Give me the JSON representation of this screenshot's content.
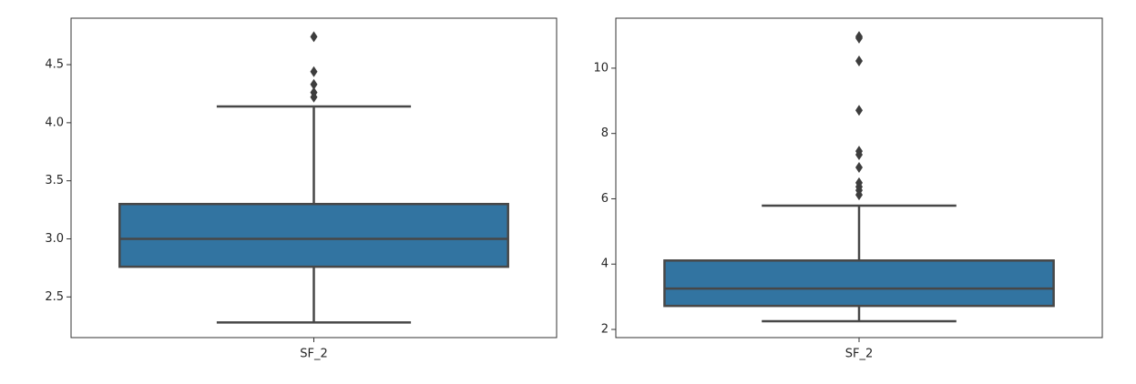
{
  "chart_data": [
    {
      "type": "box",
      "categories": [
        "SF_2"
      ],
      "color": "#3274a1",
      "boxes": [
        {
          "whislo": 2.28,
          "q1": 2.76,
          "median": 3.0,
          "q3": 3.3,
          "whishi": 4.14,
          "fliers": [
            4.74,
            4.44,
            4.33,
            4.26,
            4.22
          ]
        }
      ],
      "ylim": [
        2.15,
        4.9
      ],
      "yticks": [
        2.5,
        3.0,
        3.5,
        4.0,
        4.5
      ]
    },
    {
      "type": "box",
      "categories": [
        "SF_2"
      ],
      "color": "#3274a1",
      "boxes": [
        {
          "whislo": 2.25,
          "q1": 2.72,
          "median": 3.25,
          "q3": 4.11,
          "whishi": 5.79,
          "fliers": [
            10.97,
            10.92,
            10.22,
            8.71,
            7.46,
            7.35,
            6.96,
            6.49,
            6.37,
            6.26,
            6.12
          ]
        }
      ],
      "ylim": [
        1.75,
        11.53
      ],
      "yticks": [
        2,
        4,
        6,
        8,
        10
      ]
    }
  ]
}
